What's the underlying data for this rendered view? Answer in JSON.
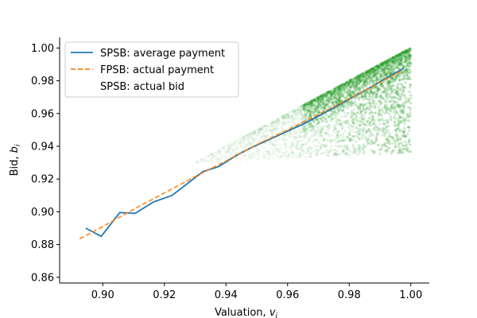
{
  "chart_data": {
    "type": "line",
    "title": "",
    "xlabel": "Valuation, v_i",
    "ylabel": "Bid, b_i",
    "xlim": [
      0.886,
      1.006
    ],
    "ylim": [
      0.8565,
      1.0065
    ],
    "xticks": [
      0.9,
      0.92,
      0.94,
      0.96,
      0.98,
      1.0
    ],
    "xtick_labels": [
      "0.90",
      "0.92",
      "0.94",
      "0.96",
      "0.98",
      "1.00"
    ],
    "yticks": [
      0.86,
      0.88,
      0.9,
      0.92,
      0.94,
      0.96,
      0.98,
      1.0
    ],
    "ytick_labels": [
      "0.86",
      "0.88",
      "0.90",
      "0.92",
      "0.94",
      "0.96",
      "0.98",
      "1.00"
    ],
    "grid": false,
    "legend_position": "upper-left",
    "series": [
      {
        "name": "SPSB: average payment",
        "style": "solid",
        "color": "#1f77b4",
        "x": [
          0.8945,
          0.8995,
          0.9055,
          0.9105,
          0.9165,
          0.9225,
          0.9325,
          0.9375,
          0.9435,
          0.9475,
          0.9545,
          0.9655,
          0.9755,
          0.9855,
          0.9975
        ],
        "y": [
          0.89,
          0.885,
          0.8995,
          0.899,
          0.906,
          0.91,
          0.9245,
          0.9275,
          0.9345,
          0.9385,
          0.9445,
          0.954,
          0.964,
          0.9745,
          0.9875
        ]
      },
      {
        "name": "FPSB: actual payment",
        "style": "dashed",
        "color": "#ff7f0e",
        "x": [
          0.8925,
          0.9,
          0.91,
          0.92,
          0.93,
          0.94,
          0.95,
          0.96,
          0.97,
          0.98,
          0.99,
          0.9975
        ],
        "y": [
          0.8835,
          0.891,
          0.9015,
          0.9115,
          0.9215,
          0.931,
          0.941,
          0.95,
          0.9595,
          0.969,
          0.979,
          0.9865
        ]
      },
      {
        "name": "SPSB: actual bid",
        "style": "scatter-cloud",
        "color": "#2ca02c",
        "description_range": "bids from valuation down toward approx 0.93 to 0.94 at v=1",
        "x_start": 0.93,
        "x_end": 1.0,
        "lower_at_end": 0.936,
        "center_at_end": 0.985
      }
    ]
  }
}
